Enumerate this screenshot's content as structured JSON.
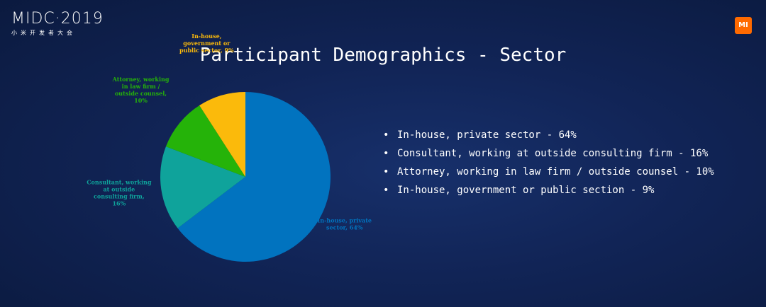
{
  "header": {
    "logo_main": "MIDC·2019",
    "logo_sub": "小米开发者大会",
    "brand_badge": "MI"
  },
  "title": "Participant Demographics - Sector",
  "colors": {
    "background": "#112456",
    "accent": "#ff6a00"
  },
  "chart_data": {
    "type": "pie",
    "title": "",
    "slices": [
      {
        "label": "In-house, private sector, 64%",
        "value": 64,
        "color": "#0173bf"
      },
      {
        "label": "Consultant, working at outside consulting firm, 16%",
        "value": 16,
        "color": "#0fa39b"
      },
      {
        "label": "Attorney, working in law firm / outside counsel, 10%",
        "value": 10,
        "color": "#25b309"
      },
      {
        "label": "In-house, government or public sector, 9%",
        "value": 9,
        "color": "#fbba0b"
      }
    ],
    "data_labels": [
      [
        "In-house, private",
        "sector, 64%"
      ],
      [
        "Consultant, working",
        "at outside",
        "consulting firm,",
        "16%"
      ],
      [
        "Attorney, working",
        "in law firm /",
        "outside counsel,",
        "10%"
      ],
      [
        "In-house,",
        "government or",
        "public sector, 9%"
      ]
    ]
  },
  "legend": {
    "items": [
      "In-house, private sector - 64%",
      "Consultant, working at outside consulting firm - 16%",
      "Attorney, working in law firm / outside counsel - 10%",
      "In-house, government or public section - 9%"
    ]
  }
}
